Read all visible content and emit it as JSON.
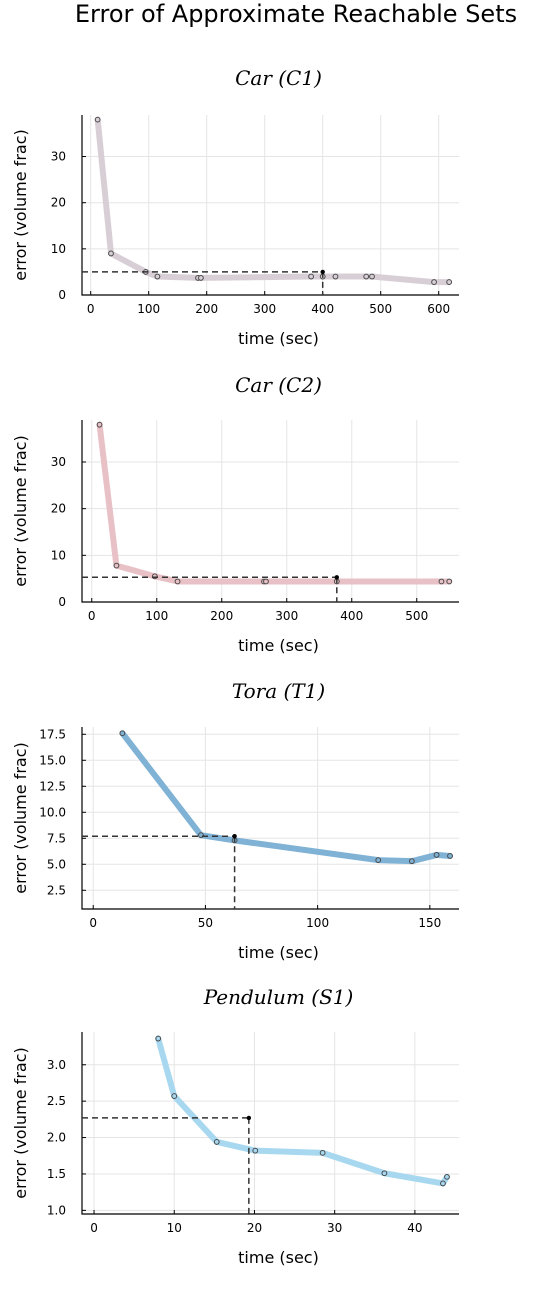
{
  "figure": {
    "title": "Error of Approximate Reachable Sets"
  },
  "chart_data": [
    {
      "type": "line",
      "title": "Car (C1)",
      "xlabel": "time (sec)",
      "ylabel": "error (volume frac)",
      "xlim": [
        -15,
        635
      ],
      "ylim": [
        0,
        39
      ],
      "xticks": [
        0,
        100,
        200,
        300,
        400,
        500,
        600
      ],
      "yticks": [
        0,
        10,
        20,
        30
      ],
      "ytick_decimals": 0,
      "grid": true,
      "legend": "none",
      "series": [
        {
          "color": "#d8cfd6",
          "x": [
            12,
            35,
            95,
            115,
            185,
            190,
            380,
            400,
            422,
            475,
            485,
            592,
            618
          ],
          "y": [
            38,
            9,
            5,
            4,
            3.7,
            3.7,
            4,
            4,
            4,
            4,
            4,
            2.8,
            2.8
          ]
        }
      ],
      "marker": {
        "x": 400,
        "y": 5,
        "color": "#000000"
      }
    },
    {
      "type": "line",
      "title": "Car (C2)",
      "xlabel": "time (sec)",
      "ylabel": "error (volume frac)",
      "xlim": [
        -15,
        565
      ],
      "ylim": [
        0,
        39
      ],
      "xticks": [
        0,
        100,
        200,
        300,
        400,
        500
      ],
      "yticks": [
        0,
        10,
        20,
        30
      ],
      "ytick_decimals": 0,
      "grid": true,
      "legend": "none",
      "series": [
        {
          "color": "#e8c1c6",
          "x": [
            12,
            38,
            97,
            132,
            265,
            268,
            377,
            538,
            550
          ],
          "y": [
            38,
            7.8,
            5.5,
            4.4,
            4.4,
            4.4,
            4.4,
            4.4,
            4.4
          ]
        }
      ],
      "marker": {
        "x": 377,
        "y": 5.3,
        "color": "#000000"
      }
    },
    {
      "type": "line",
      "title": "Tora (T1)",
      "xlabel": "time (sec)",
      "ylabel": "error (volume frac)",
      "xlim": [
        -5,
        163
      ],
      "ylim": [
        0.7,
        18.2
      ],
      "xticks": [
        0,
        50,
        100,
        150
      ],
      "yticks": [
        2.5,
        5.0,
        7.5,
        10.0,
        12.5,
        15.0,
        17.5
      ],
      "ytick_decimals": 1,
      "grid": true,
      "legend": "none",
      "series": [
        {
          "color": "#7fb2d5",
          "x": [
            13,
            48,
            63,
            127,
            142,
            153,
            159
          ],
          "y": [
            17.6,
            7.8,
            7.3,
            5.4,
            5.3,
            5.9,
            5.8
          ]
        }
      ],
      "marker": {
        "x": 63,
        "y": 7.7,
        "color": "#000000"
      }
    },
    {
      "type": "line",
      "title": "Pendulum (S1)",
      "xlabel": "time (sec)",
      "ylabel": "error (volume frac)",
      "xlim": [
        -1.5,
        45.5
      ],
      "ylim": [
        0.95,
        3.45
      ],
      "xticks": [
        0,
        10,
        20,
        30,
        40
      ],
      "yticks": [
        1.0,
        1.5,
        2.0,
        2.5,
        3.0
      ],
      "ytick_decimals": 1,
      "grid": true,
      "legend": "none",
      "series": [
        {
          "color": "#a8d8f0",
          "x": [
            8,
            10,
            15.3,
            20.1,
            28.5,
            36.2,
            43.5,
            44
          ],
          "y": [
            3.36,
            2.57,
            1.94,
            1.82,
            1.79,
            1.51,
            1.37,
            1.46
          ]
        }
      ],
      "marker": {
        "x": 19.3,
        "y": 2.27,
        "color": "#000000"
      }
    }
  ]
}
